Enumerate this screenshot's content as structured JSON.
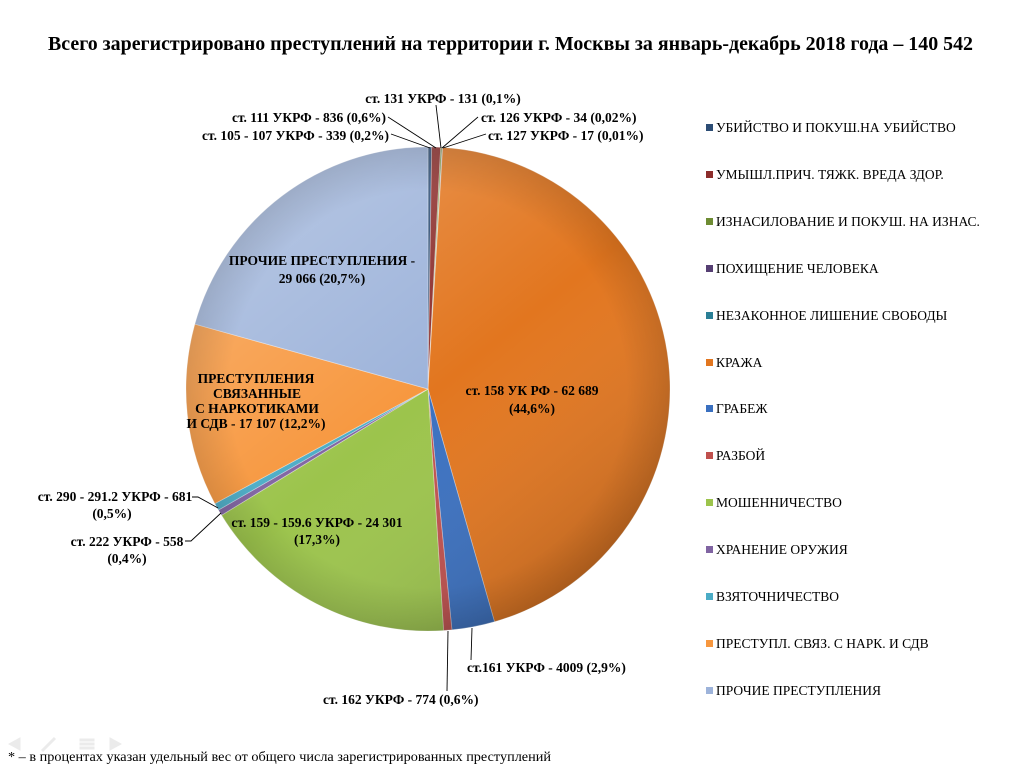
{
  "chart_data": {
    "type": "pie",
    "title": "Всего зарегистрировано преступлений на территории г. Москвы за январь-декабрь 2018 года – 140 542",
    "note": "* – в процентах указан удельный вес от общего числа зарегистрированных преступлений",
    "legend": "right",
    "categories": [
      "УБИЙСТВО И ПОКУШ.НА УБИЙСТВО",
      "УМЫШЛ.ПРИЧ. ТЯЖК. ВРЕДА ЗДОР.",
      "ИЗНАСИЛОВАНИЕ И ПОКУШ. НА ИЗНАС.",
      "ПОХИЩЕНИЕ ЧЕЛОВЕКА",
      "НЕЗАКОННОЕ ЛИШЕНИЕ СВОБОДЫ",
      "КРАЖА",
      "ГРАБЕЖ",
      "РАЗБОЙ",
      "МОШЕННИЧЕСТВО",
      "ХРАНЕНИЕ ОРУЖИЯ",
      "ВЗЯТОЧНИЧЕСТВО",
      "ПРЕСТУПЛ. СВЯЗ. С НАРК. И СДВ",
      "ПРОЧИЕ ПРЕСТУПЛЕНИЯ"
    ],
    "values": [
      339,
      836,
      131,
      34,
      17,
      62689,
      4009,
      774,
      24301,
      558,
      681,
      17107,
      29066
    ],
    "data_labels": [
      [
        "ст. 105 - 107 УКРФ - 339 (0,2%)"
      ],
      [
        "ст. 111 УКРФ - 836 (0,6%)"
      ],
      [
        "ст. 131 УКРФ - 131 (0,1%)"
      ],
      [
        "ст. 126 УКРФ - 34 (0,02%)"
      ],
      [
        "ст. 127 УКРФ - 17 (0,01%)"
      ],
      [
        "ст. 158 УК РФ - 62 689",
        "(44,6%)"
      ],
      [
        "ст.161 УКРФ - 4009 (2,9%)"
      ],
      [
        "ст. 162 УКРФ - 774 (0,6%)"
      ],
      [
        "ст. 159 - 159.6 УКРФ - 24 301",
        "(17,3%)"
      ],
      [
        "ст. 222 УКРФ - 558",
        "(0,4%)"
      ],
      [
        "ст. 290 - 291.2 УКРФ - 681",
        "(0,5%)"
      ],
      [
        "ПРЕСТУПЛЕНИЯ",
        "СВЯЗАННЫЕ",
        "С НАРКОТИКАМИ",
        "И СДВ - 17 107 (12,2%)"
      ],
      [
        "ПРОЧИЕ ПРЕСТУПЛЕНИЯ -",
        "29 066 (20,7%)"
      ]
    ],
    "colors": [
      "#2C4D75",
      "#8C2D2B",
      "#6E8C33",
      "#563F73",
      "#2A7F96",
      "#E2761F",
      "#3A70C0",
      "#C0504D",
      "#9CC44C",
      "#8064A2",
      "#4BACC6",
      "#F7973E",
      "#9DB3DA"
    ]
  },
  "slideshow_controls": [
    "previous-slide-icon",
    "pen-icon",
    "menu-icon",
    "next-slide-icon"
  ]
}
